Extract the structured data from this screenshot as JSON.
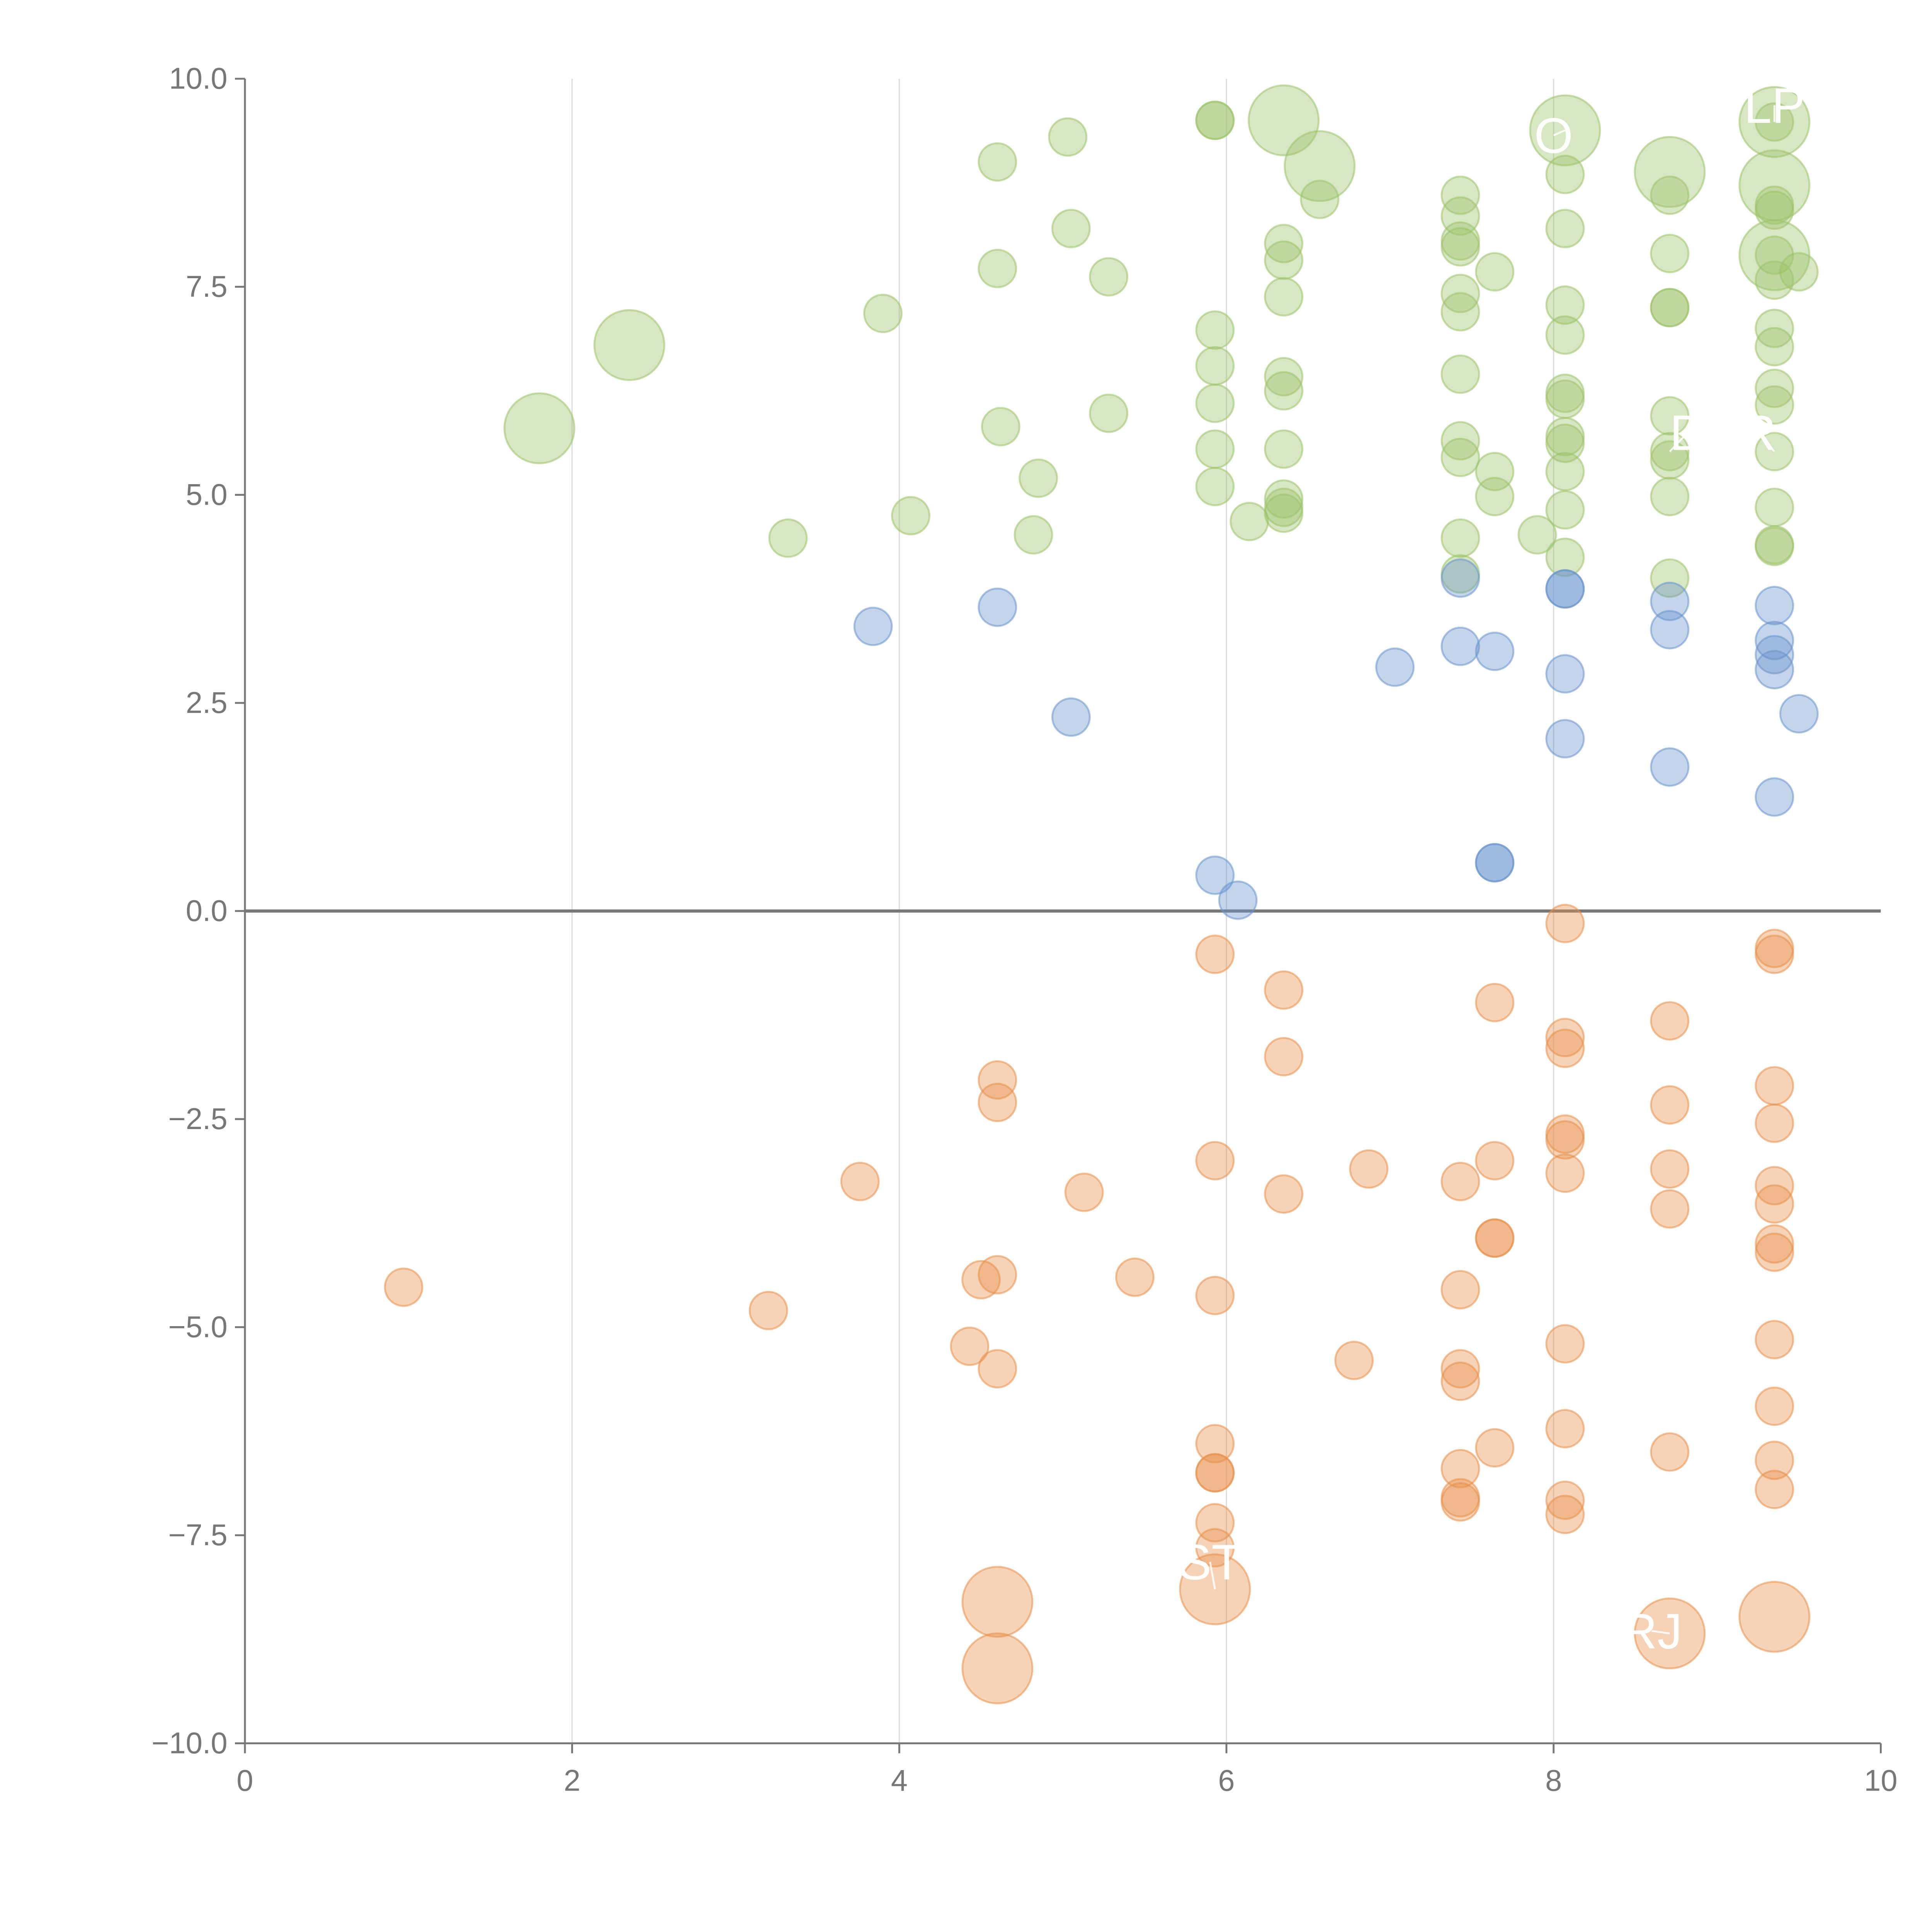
{
  "chart_data": {
    "type": "scatter",
    "title": "",
    "xlabel": "",
    "ylabel": "",
    "xlim": [
      0,
      10
    ],
    "ylim": [
      -10,
      10
    ],
    "x_ticks": [
      "0",
      "2",
      "4",
      "6",
      "8",
      "10"
    ],
    "y_ticks": [
      "10.0",
      "7.5",
      "5.0",
      "2.5",
      "0.0",
      "−2.5",
      "−5.0",
      "−7.5",
      "−10.0"
    ],
    "x_tick_values": [
      0,
      2,
      4,
      6,
      8,
      10
    ],
    "y_tick_values": [
      10,
      7.5,
      5,
      2.5,
      0,
      -2.5,
      -5,
      -7.5,
      -10
    ],
    "vertical_gridlines": [
      2,
      4,
      6,
      8
    ],
    "zero_line": 0,
    "colors": {
      "green": "#9cc26a",
      "blue": "#6a94cc",
      "orange": "#e8904a",
      "axis": "#777777",
      "grid": "#dddddd",
      "zero": "#777777"
    },
    "series": [
      {
        "name": "green",
        "color": "#9cc26a",
        "points": [
          {
            "x": 1.8,
            "y": 5.8,
            "r": 3
          },
          {
            "x": 2.35,
            "y": 6.8,
            "r": 3
          },
          {
            "x": 3.32,
            "y": 4.48,
            "r": 1
          },
          {
            "x": 3.9,
            "y": 7.18,
            "r": 1
          },
          {
            "x": 4.07,
            "y": 4.75,
            "r": 1
          },
          {
            "x": 4.6,
            "y": 9.0,
            "r": 1
          },
          {
            "x": 4.6,
            "y": 7.72,
            "r": 1
          },
          {
            "x": 4.62,
            "y": 5.82,
            "r": 1
          },
          {
            "x": 4.82,
            "y": 4.52,
            "r": 1
          },
          {
            "x": 4.85,
            "y": 5.2,
            "r": 1
          },
          {
            "x": 5.03,
            "y": 9.3,
            "r": 1
          },
          {
            "x": 5.05,
            "y": 8.2,
            "r": 1
          },
          {
            "x": 5.28,
            "y": 7.62,
            "r": 1
          },
          {
            "x": 5.28,
            "y": 5.98,
            "r": 1
          },
          {
            "x": 5.93,
            "y": 9.5,
            "r": 1
          },
          {
            "x": 5.93,
            "y": 9.5,
            "r": 1
          },
          {
            "x": 5.93,
            "y": 6.98,
            "r": 1
          },
          {
            "x": 5.93,
            "y": 6.55,
            "r": 1
          },
          {
            "x": 5.93,
            "y": 6.1,
            "r": 1
          },
          {
            "x": 5.93,
            "y": 5.55,
            "r": 1
          },
          {
            "x": 5.93,
            "y": 5.1,
            "r": 1
          },
          {
            "x": 6.14,
            "y": 4.68,
            "r": 1
          },
          {
            "x": 6.35,
            "y": 9.5,
            "r": 3
          },
          {
            "x": 6.35,
            "y": 8.02,
            "r": 1
          },
          {
            "x": 6.35,
            "y": 7.82,
            "r": 1
          },
          {
            "x": 6.35,
            "y": 7.38,
            "r": 1
          },
          {
            "x": 6.35,
            "y": 6.42,
            "r": 1
          },
          {
            "x": 6.35,
            "y": 6.25,
            "r": 1
          },
          {
            "x": 6.35,
            "y": 5.55,
            "r": 1
          },
          {
            "x": 6.35,
            "y": 4.95,
            "r": 1
          },
          {
            "x": 6.35,
            "y": 4.85,
            "r": 1
          },
          {
            "x": 6.35,
            "y": 4.78,
            "r": 1
          },
          {
            "x": 6.57,
            "y": 8.95,
            "r": 3
          },
          {
            "x": 6.57,
            "y": 8.55,
            "r": 1
          },
          {
            "x": 7.43,
            "y": 8.6,
            "r": 1
          },
          {
            "x": 7.43,
            "y": 8.35,
            "r": 1
          },
          {
            "x": 7.43,
            "y": 8.05,
            "r": 1
          },
          {
            "x": 7.43,
            "y": 7.98,
            "r": 1
          },
          {
            "x": 7.43,
            "y": 7.42,
            "r": 1
          },
          {
            "x": 7.43,
            "y": 7.2,
            "r": 1
          },
          {
            "x": 7.43,
            "y": 6.45,
            "r": 1
          },
          {
            "x": 7.43,
            "y": 5.65,
            "r": 1
          },
          {
            "x": 7.43,
            "y": 5.45,
            "r": 1
          },
          {
            "x": 7.43,
            "y": 4.48,
            "r": 1
          },
          {
            "x": 7.43,
            "y": 4.05,
            "r": 1
          },
          {
            "x": 7.64,
            "y": 7.68,
            "r": 1
          },
          {
            "x": 7.64,
            "y": 5.28,
            "r": 1
          },
          {
            "x": 7.64,
            "y": 4.98,
            "r": 1
          },
          {
            "x": 7.9,
            "y": 4.52,
            "r": 1
          },
          {
            "x": 8.07,
            "y": 9.38,
            "r": 3
          },
          {
            "x": 8.07,
            "y": 8.85,
            "r": 1
          },
          {
            "x": 8.07,
            "y": 8.2,
            "r": 1
          },
          {
            "x": 8.07,
            "y": 7.28,
            "r": 1
          },
          {
            "x": 8.07,
            "y": 6.92,
            "r": 1
          },
          {
            "x": 8.07,
            "y": 6.22,
            "r": 1
          },
          {
            "x": 8.07,
            "y": 6.15,
            "r": 1
          },
          {
            "x": 8.07,
            "y": 5.7,
            "r": 1
          },
          {
            "x": 8.07,
            "y": 5.62,
            "r": 1
          },
          {
            "x": 8.07,
            "y": 5.28,
            "r": 1
          },
          {
            "x": 8.07,
            "y": 4.82,
            "r": 1
          },
          {
            "x": 8.07,
            "y": 4.25,
            "r": 1
          },
          {
            "x": 8.71,
            "y": 8.88,
            "r": 3
          },
          {
            "x": 8.71,
            "y": 8.6,
            "r": 1
          },
          {
            "x": 8.71,
            "y": 7.9,
            "r": 1
          },
          {
            "x": 8.71,
            "y": 7.25,
            "r": 1
          },
          {
            "x": 8.71,
            "y": 7.25,
            "r": 1
          },
          {
            "x": 8.71,
            "y": 5.95,
            "r": 1
          },
          {
            "x": 8.71,
            "y": 5.52,
            "r": 1
          },
          {
            "x": 8.71,
            "y": 5.42,
            "r": 1
          },
          {
            "x": 8.71,
            "y": 4.98,
            "r": 1
          },
          {
            "x": 8.71,
            "y": 4.0,
            "r": 1
          },
          {
            "x": 9.35,
            "y": 9.48,
            "r": 3
          },
          {
            "x": 9.35,
            "y": 9.48,
            "r": 1
          },
          {
            "x": 9.35,
            "y": 8.72,
            "r": 3
          },
          {
            "x": 9.35,
            "y": 8.48,
            "r": 1
          },
          {
            "x": 9.35,
            "y": 8.42,
            "r": 1
          },
          {
            "x": 9.35,
            "y": 7.88,
            "r": 3
          },
          {
            "x": 9.35,
            "y": 7.88,
            "r": 1
          },
          {
            "x": 9.35,
            "y": 7.58,
            "r": 1
          },
          {
            "x": 9.5,
            "y": 7.68,
            "r": 1
          },
          {
            "x": 9.35,
            "y": 7.0,
            "r": 1
          },
          {
            "x": 9.35,
            "y": 6.78,
            "r": 1
          },
          {
            "x": 9.35,
            "y": 6.28,
            "r": 1
          },
          {
            "x": 9.35,
            "y": 6.08,
            "r": 1
          },
          {
            "x": 9.35,
            "y": 5.52,
            "r": 1
          },
          {
            "x": 9.35,
            "y": 4.85,
            "r": 1
          },
          {
            "x": 9.35,
            "y": 4.4,
            "r": 1
          },
          {
            "x": 9.35,
            "y": 4.38,
            "r": 1
          }
        ]
      },
      {
        "name": "blue",
        "color": "#6a94cc",
        "points": [
          {
            "x": 3.84,
            "y": 3.42,
            "r": 1
          },
          {
            "x": 4.6,
            "y": 3.65,
            "r": 1
          },
          {
            "x": 5.05,
            "y": 2.33,
            "r": 1
          },
          {
            "x": 5.93,
            "y": 0.43,
            "r": 1
          },
          {
            "x": 6.07,
            "y": 0.13,
            "r": 1
          },
          {
            "x": 7.03,
            "y": 2.93,
            "r": 1
          },
          {
            "x": 7.43,
            "y": 4.0,
            "r": 1
          },
          {
            "x": 7.43,
            "y": 3.18,
            "r": 1
          },
          {
            "x": 7.64,
            "y": 3.12,
            "r": 1
          },
          {
            "x": 7.64,
            "y": 0.58,
            "r": 1
          },
          {
            "x": 7.64,
            "y": 0.58,
            "r": 1
          },
          {
            "x": 8.07,
            "y": 3.87,
            "r": 1
          },
          {
            "x": 8.07,
            "y": 3.87,
            "r": 1
          },
          {
            "x": 8.07,
            "y": 2.85,
            "r": 1
          },
          {
            "x": 8.07,
            "y": 2.07,
            "r": 1
          },
          {
            "x": 8.71,
            "y": 3.72,
            "r": 1
          },
          {
            "x": 8.71,
            "y": 3.38,
            "r": 1
          },
          {
            "x": 8.71,
            "y": 1.73,
            "r": 1
          },
          {
            "x": 9.35,
            "y": 3.67,
            "r": 1
          },
          {
            "x": 9.35,
            "y": 3.25,
            "r": 1
          },
          {
            "x": 9.35,
            "y": 3.08,
            "r": 1
          },
          {
            "x": 9.35,
            "y": 2.9,
            "r": 1
          },
          {
            "x": 9.35,
            "y": 1.37,
            "r": 1
          },
          {
            "x": 9.5,
            "y": 2.37,
            "r": 1
          }
        ]
      },
      {
        "name": "orange",
        "color": "#e8904a",
        "points": [
          {
            "x": 0.97,
            "y": -4.52,
            "r": 1
          },
          {
            "x": 3.2,
            "y": -4.8,
            "r": 1
          },
          {
            "x": 3.76,
            "y": -3.25,
            "r": 1
          },
          {
            "x": 4.43,
            "y": -5.23,
            "r": 1
          },
          {
            "x": 4.5,
            "y": -4.43,
            "r": 1
          },
          {
            "x": 4.6,
            "y": -2.03,
            "r": 1
          },
          {
            "x": 4.6,
            "y": -2.3,
            "r": 1
          },
          {
            "x": 4.6,
            "y": -4.37,
            "r": 1
          },
          {
            "x": 4.6,
            "y": -5.5,
            "r": 1
          },
          {
            "x": 4.6,
            "y": -8.3,
            "r": 3
          },
          {
            "x": 4.6,
            "y": -9.1,
            "r": 3
          },
          {
            "x": 5.13,
            "y": -3.38,
            "r": 1
          },
          {
            "x": 5.44,
            "y": -4.4,
            "r": 1
          },
          {
            "x": 5.93,
            "y": -0.52,
            "r": 1
          },
          {
            "x": 5.93,
            "y": -3.0,
            "r": 1
          },
          {
            "x": 5.93,
            "y": -4.62,
            "r": 1
          },
          {
            "x": 5.93,
            "y": -6.4,
            "r": 1
          },
          {
            "x": 5.93,
            "y": -6.75,
            "r": 1
          },
          {
            "x": 5.93,
            "y": -6.75,
            "r": 1
          },
          {
            "x": 5.93,
            "y": -7.35,
            "r": 1
          },
          {
            "x": 5.93,
            "y": -7.65,
            "r": 1
          },
          {
            "x": 5.93,
            "y": -8.15,
            "r": 3
          },
          {
            "x": 6.35,
            "y": -0.95,
            "r": 1
          },
          {
            "x": 6.35,
            "y": -1.75,
            "r": 1
          },
          {
            "x": 6.35,
            "y": -3.4,
            "r": 1
          },
          {
            "x": 6.78,
            "y": -5.4,
            "r": 1
          },
          {
            "x": 6.87,
            "y": -3.1,
            "r": 1
          },
          {
            "x": 7.43,
            "y": -3.25,
            "r": 1
          },
          {
            "x": 7.43,
            "y": -4.55,
            "r": 1
          },
          {
            "x": 7.43,
            "y": -5.5,
            "r": 1
          },
          {
            "x": 7.43,
            "y": -5.65,
            "r": 1
          },
          {
            "x": 7.43,
            "y": -6.7,
            "r": 1
          },
          {
            "x": 7.43,
            "y": -7.05,
            "r": 1
          },
          {
            "x": 7.43,
            "y": -7.1,
            "r": 1
          },
          {
            "x": 7.64,
            "y": -1.1,
            "r": 1
          },
          {
            "x": 7.64,
            "y": -3.0,
            "r": 1
          },
          {
            "x": 7.64,
            "y": -3.93,
            "r": 1
          },
          {
            "x": 7.64,
            "y": -3.93,
            "r": 1
          },
          {
            "x": 7.64,
            "y": -6.45,
            "r": 1
          },
          {
            "x": 8.07,
            "y": -0.15,
            "r": 1
          },
          {
            "x": 8.07,
            "y": -1.52,
            "r": 1
          },
          {
            "x": 8.07,
            "y": -1.65,
            "r": 1
          },
          {
            "x": 8.07,
            "y": -2.68,
            "r": 1
          },
          {
            "x": 8.07,
            "y": -2.75,
            "r": 1
          },
          {
            "x": 8.07,
            "y": -3.15,
            "r": 1
          },
          {
            "x": 8.07,
            "y": -5.2,
            "r": 1
          },
          {
            "x": 8.07,
            "y": -6.22,
            "r": 1
          },
          {
            "x": 8.07,
            "y": -7.08,
            "r": 1
          },
          {
            "x": 8.07,
            "y": -7.25,
            "r": 1
          },
          {
            "x": 8.71,
            "y": -1.32,
            "r": 1
          },
          {
            "x": 8.71,
            "y": -2.33,
            "r": 1
          },
          {
            "x": 8.71,
            "y": -3.1,
            "r": 1
          },
          {
            "x": 8.71,
            "y": -3.58,
            "r": 1
          },
          {
            "x": 8.71,
            "y": -6.5,
            "r": 1
          },
          {
            "x": 8.71,
            "y": -8.68,
            "r": 3
          },
          {
            "x": 9.35,
            "y": -0.45,
            "r": 1
          },
          {
            "x": 9.35,
            "y": -0.52,
            "r": 1
          },
          {
            "x": 9.35,
            "y": -2.1,
            "r": 1
          },
          {
            "x": 9.35,
            "y": -2.55,
            "r": 1
          },
          {
            "x": 9.35,
            "y": -3.3,
            "r": 1
          },
          {
            "x": 9.35,
            "y": -3.52,
            "r": 1
          },
          {
            "x": 9.35,
            "y": -4.0,
            "r": 1
          },
          {
            "x": 9.35,
            "y": -4.1,
            "r": 1
          },
          {
            "x": 9.35,
            "y": -5.15,
            "r": 1
          },
          {
            "x": 9.35,
            "y": -5.95,
            "r": 1
          },
          {
            "x": 9.35,
            "y": -6.6,
            "r": 1
          },
          {
            "x": 9.35,
            "y": -6.95,
            "r": 1
          },
          {
            "x": 9.35,
            "y": -8.48,
            "r": 3
          }
        ]
      }
    ],
    "annotations": [
      {
        "text": "LP",
        "x": 9.35,
        "y": 9.68,
        "px": 9.35,
        "py": 9.48
      },
      {
        "text": "O",
        "x": 8.0,
        "y": 9.32,
        "px": 8.07,
        "py": 9.38
      },
      {
        "text": "D",
        "x": 8.82,
        "y": 5.75,
        "px": 8.71,
        "py": 5.52
      },
      {
        "text": "R",
        "x": 9.25,
        "y": 5.75,
        "px": 9.35,
        "py": 5.52
      },
      {
        "text": "ST",
        "x": 5.9,
        "y": -7.82,
        "px": 5.93,
        "py": -8.15
      },
      {
        "text": "RJ",
        "x": 8.6,
        "y": -8.65,
        "px": 8.71,
        "py": -8.68
      }
    ]
  }
}
